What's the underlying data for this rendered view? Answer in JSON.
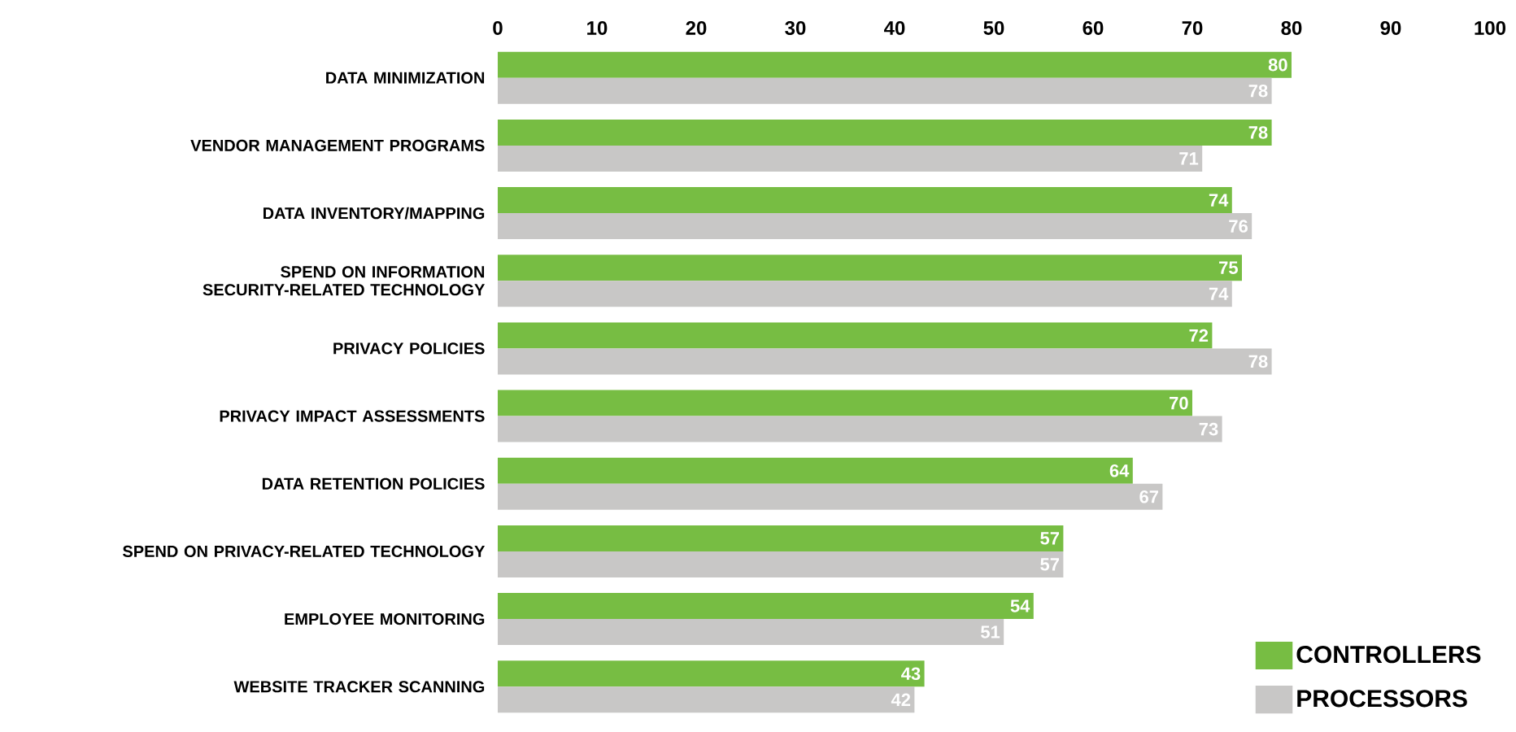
{
  "chart_data": {
    "type": "bar",
    "orientation": "horizontal",
    "categories": [
      "DATA MINIMIZATION",
      "VENDOR MANAGEMENT PROGRAMS",
      "DATA INVENTORY/MAPPING",
      "SPEND ON INFORMATION SECURITY-RELATED TECHNOLOGY",
      "PRIVACY POLICIES",
      "PRIVACY IMPACT ASSESSMENTS",
      "DATA RETENTION POLICIES",
      "SPEND ON PRIVACY-RELATED TECHNOLOGY",
      "EMPLOYEE MONITORING",
      "WEBSITE TRACKER SCANNING"
    ],
    "series": [
      {
        "name": "CONTROLLERS",
        "color": "#77bd43",
        "values": [
          80,
          78,
          74,
          75,
          72,
          70,
          64,
          57,
          54,
          43
        ]
      },
      {
        "name": "PROCESSORS",
        "color": "#c8c7c6",
        "values": [
          78,
          71,
          76,
          74,
          78,
          73,
          67,
          57,
          51,
          42
        ]
      }
    ],
    "xlim": [
      0,
      100
    ],
    "xticks": [
      0,
      10,
      20,
      30,
      40,
      50,
      60,
      70,
      80,
      90,
      100
    ],
    "data_labels": true,
    "grid": false,
    "legend": "bottom right"
  }
}
